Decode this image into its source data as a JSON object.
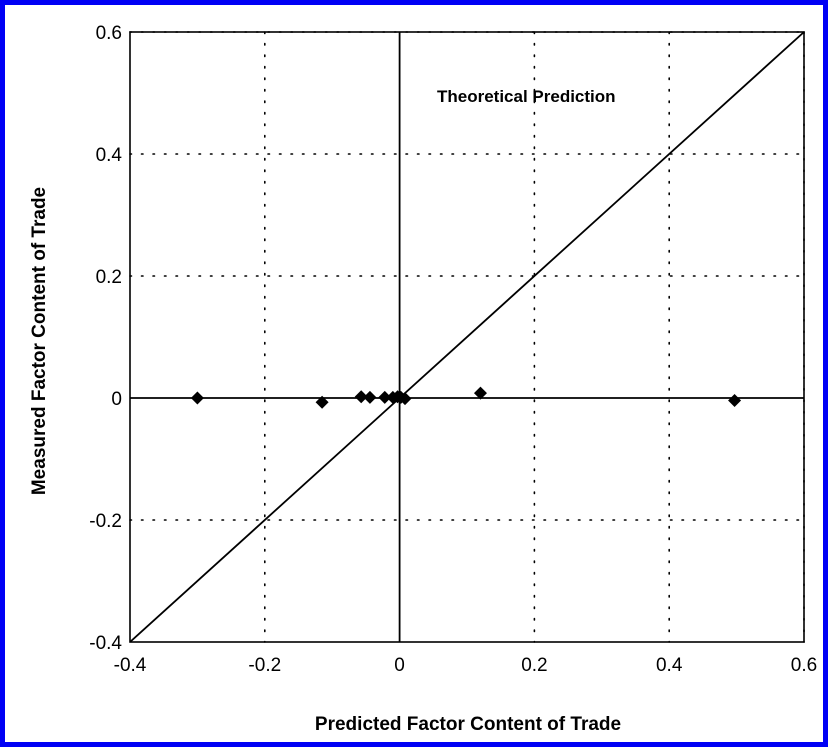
{
  "chart_data": {
    "type": "scatter",
    "title": "",
    "xlabel": "Predicted Factor Content of Trade",
    "ylabel": "Measured Factor Content of Trade",
    "xlim": [
      -0.4,
      0.6
    ],
    "ylim": [
      -0.4,
      0.6
    ],
    "x_ticks": [
      -0.4,
      -0.2,
      0,
      0.2,
      0.4,
      0.6
    ],
    "y_ticks": [
      -0.4,
      -0.2,
      0,
      0.2,
      0.4,
      0.6
    ],
    "x_tick_labels": [
      "-0.4",
      "-0.2",
      "0",
      "0.2",
      "0.4",
      "0.6"
    ],
    "y_tick_labels": [
      "-0.4",
      "-0.2",
      "0",
      "0.2",
      "0.4",
      "0.6"
    ],
    "grid": "dotted",
    "marker": "diamond",
    "points": [
      {
        "x": -0.3,
        "y": 0.0
      },
      {
        "x": -0.115,
        "y": -0.007
      },
      {
        "x": -0.057,
        "y": 0.002
      },
      {
        "x": -0.044,
        "y": 0.001
      },
      {
        "x": -0.022,
        "y": 0.001
      },
      {
        "x": -0.01,
        "y": 0.001
      },
      {
        "x": -0.003,
        "y": 0.002
      },
      {
        "x": 0.002,
        "y": 0.001
      },
      {
        "x": 0.008,
        "y": -0.001
      },
      {
        "x": 0.12,
        "y": 0.008
      },
      {
        "x": 0.497,
        "y": -0.004
      }
    ],
    "reference_line": {
      "label": "Theoretical Prediction",
      "from": [
        -0.4,
        -0.4
      ],
      "to": [
        0.6,
        0.6
      ]
    },
    "colors": {
      "frame": "#0000f5",
      "ink": "#000000"
    }
  }
}
